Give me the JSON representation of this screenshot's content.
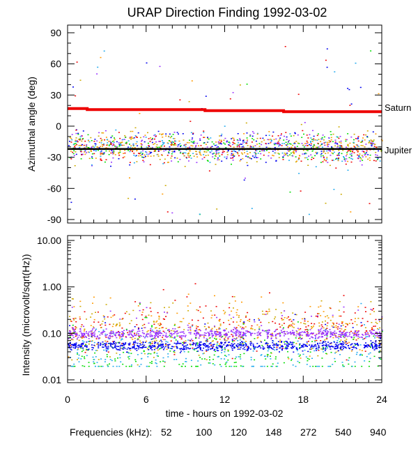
{
  "chart_data": [
    {
      "type": "scatter",
      "panel": "top",
      "title": "URAP Direction Finding  1992-03-02",
      "xlabel": "",
      "ylabel": "Azimuthal angle (deg)",
      "xlim": [
        0,
        24
      ],
      "ylim": [
        -90,
        90
      ],
      "yticks": [
        90,
        60,
        30,
        0,
        -30,
        -60,
        -90
      ],
      "yticklabels": [
        "90",
        "60",
        "30",
        "0",
        "-30",
        "-60",
        "-90"
      ],
      "reference_lines": [
        {
          "name": "Saturn",
          "color": "#ee0000",
          "x": [
            0,
            1.5,
            1.5,
            10.5,
            10.5,
            16.5,
            16.5,
            24
          ],
          "y": [
            17,
            17,
            16,
            16,
            15,
            15,
            14,
            14
          ]
        },
        {
          "name": "Jupiter",
          "color": "#000000",
          "x": [
            0,
            24
          ],
          "y": [
            -22,
            -22
          ]
        }
      ],
      "series_cloud": {
        "center_deg": -20,
        "spread_deg": 12,
        "outlier_range_deg": [
          -85,
          80
        ]
      }
    },
    {
      "type": "scatter",
      "panel": "bottom",
      "xlabel": "time - hours on 1992-03-02",
      "ylabel": "Intensity (microvolt/sqrt(Hz))",
      "xlim": [
        0,
        24
      ],
      "ylim": [
        0.01,
        10
      ],
      "yscale": "log",
      "yticks": [
        10,
        1,
        0.1,
        0.01
      ],
      "yticklabels": [
        "10.00",
        "1.00",
        "0.10",
        "0.01"
      ],
      "xticks": [
        0,
        6,
        12,
        18,
        24
      ],
      "xticklabels": [
        "0",
        "6",
        "12",
        "18",
        "24"
      ],
      "series": [
        {
          "name": "52",
          "color": "#ee0000",
          "typical": 0.13
        },
        {
          "name": "100",
          "color": "#ff9900",
          "typical": 0.12
        },
        {
          "name": "120",
          "color": "#ccaa00",
          "typical": 0.11
        },
        {
          "name": "148",
          "color": "#00dd00",
          "typical": 0.04
        },
        {
          "name": "272",
          "color": "#22aaee",
          "typical": 0.04
        },
        {
          "name": "540",
          "color": "#0000ee",
          "typical": 0.055
        },
        {
          "name": "940",
          "color": "#9933ff",
          "typical": 0.1
        }
      ]
    }
  ],
  "legend": {
    "label": "Frequencies (kHz):",
    "items": [
      {
        "name": "52",
        "color": "#ee0000"
      },
      {
        "name": "100",
        "color": "#ff9900"
      },
      {
        "name": "120",
        "color": "#ccaa00"
      },
      {
        "name": "148",
        "color": "#00dd00"
      },
      {
        "name": "272",
        "color": "#22aaee"
      },
      {
        "name": "540",
        "color": "#0000ee"
      },
      {
        "name": "940",
        "color": "#9933ff"
      }
    ]
  }
}
